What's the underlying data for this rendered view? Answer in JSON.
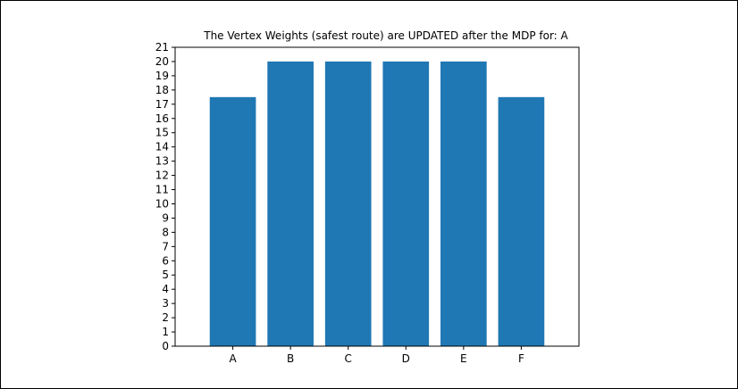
{
  "chart_data": {
    "type": "bar",
    "title": "The Vertex Weights (safest route) are UPDATED after the MDP for: A",
    "xlabel": "",
    "ylabel": "",
    "categories": [
      "A",
      "B",
      "C",
      "D",
      "E",
      "F"
    ],
    "values": [
      17.5,
      20,
      20,
      20,
      20,
      17.5
    ],
    "ylim": [
      0,
      21
    ],
    "yticks": [
      "0",
      "1",
      "2",
      "3",
      "4",
      "5",
      "6",
      "7",
      "8",
      "9",
      "10",
      "11",
      "12",
      "13",
      "14",
      "15",
      "16",
      "17",
      "18",
      "19",
      "20",
      "21"
    ],
    "bar_color": "#1f77b4",
    "grid": false,
    "legend": "none"
  }
}
